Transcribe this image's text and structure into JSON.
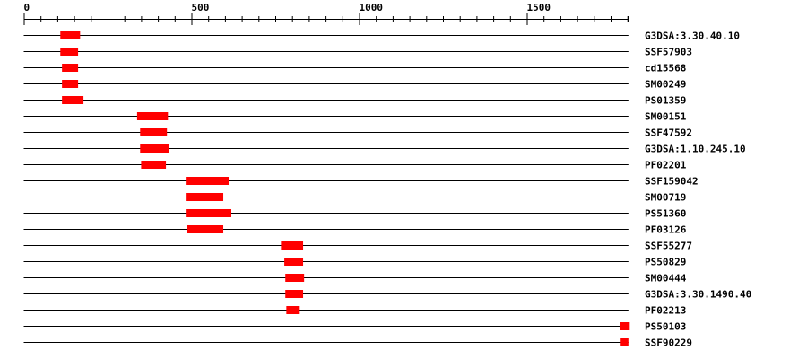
{
  "axis": {
    "min": 0,
    "max": 1803,
    "major_step": 500,
    "minor_step": 50,
    "tick_labels": [
      "0",
      "500",
      "1000",
      "1500"
    ]
  },
  "colors": {
    "domain": "#ff0000",
    "line": "#000000"
  },
  "tracks": [
    {
      "label": "G3DSA:3.30.40.10",
      "start": 109,
      "end": 168
    },
    {
      "label": "SSF57903",
      "start": 109,
      "end": 162
    },
    {
      "label": "cd15568",
      "start": 114,
      "end": 162
    },
    {
      "label": "SM00249",
      "start": 114,
      "end": 162
    },
    {
      "label": "PS01359",
      "start": 114,
      "end": 178
    },
    {
      "label": "SM00151",
      "start": 338,
      "end": 430
    },
    {
      "label": "SSF47592",
      "start": 347,
      "end": 427
    },
    {
      "label": "G3DSA:1.10.245.10",
      "start": 347,
      "end": 432
    },
    {
      "label": "PF02201",
      "start": 350,
      "end": 424
    },
    {
      "label": "SSF159042",
      "start": 483,
      "end": 611
    },
    {
      "label": "SM00719",
      "start": 483,
      "end": 595
    },
    {
      "label": "PS51360",
      "start": 483,
      "end": 619
    },
    {
      "label": "PF03126",
      "start": 488,
      "end": 595
    },
    {
      "label": "SSF55277",
      "start": 767,
      "end": 833
    },
    {
      "label": "PS50829",
      "start": 777,
      "end": 833
    },
    {
      "label": "SM00444",
      "start": 780,
      "end": 836
    },
    {
      "label": "G3DSA:3.30.1490.40",
      "start": 780,
      "end": 833
    },
    {
      "label": "PF02213",
      "start": 783,
      "end": 823
    },
    {
      "label": "PS50103",
      "start": 1777,
      "end": 1807
    },
    {
      "label": "SSF90229",
      "start": 1780,
      "end": 1803
    }
  ]
}
